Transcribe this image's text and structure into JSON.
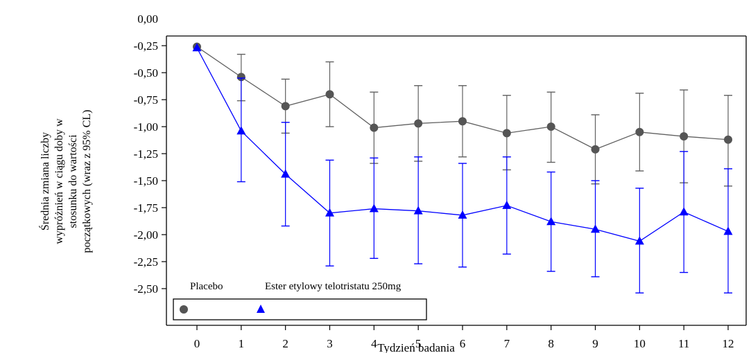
{
  "chart_data": {
    "type": "line",
    "xlabel": "Tydzień badania",
    "ylabel_lines": [
      "Średnia zmiana liczby",
      "wypróżnień w ciągu doby w",
      "stosunku do wartości",
      "początkowych (wraz z 95% CL)"
    ],
    "x": [
      0,
      1,
      2,
      3,
      4,
      5,
      6,
      7,
      8,
      9,
      10,
      11,
      12
    ],
    "x_tick_labels": [
      "0",
      "1",
      "2",
      "3",
      "4",
      "5",
      "6",
      "7",
      "8",
      "9",
      "10",
      "11",
      "12"
    ],
    "y_tick_labels": [
      "0,00",
      "-0,25",
      "-0,50",
      "-0,75",
      "-1,00",
      "-1,25",
      "-1,50",
      "-1,75",
      "-2,00",
      "-2,25",
      "-2,50"
    ],
    "y_ticks": [
      0,
      -0.25,
      -0.5,
      -0.75,
      -1.0,
      -1.25,
      -1.5,
      -1.75,
      -2.0,
      -2.25,
      -2.5
    ],
    "ylim": [
      -2.75,
      0.0
    ],
    "xlim": [
      -0.5,
      12.5
    ],
    "grid": false,
    "legend_placement": "bottom-left",
    "series": [
      {
        "name": "Placebo",
        "marker": "circle",
        "color": "#606060",
        "values": [
          -0.26,
          -0.54,
          -0.81,
          -0.7,
          -1.01,
          -0.97,
          -0.95,
          -1.06,
          -1.0,
          -1.21,
          -1.05,
          -1.09,
          -1.12
        ],
        "lower": [
          -0.26,
          -0.76,
          -1.06,
          -1.0,
          -1.34,
          -1.32,
          -1.28,
          -1.4,
          -1.33,
          -1.53,
          -1.41,
          -1.52,
          -1.55
        ],
        "upper": [
          -0.26,
          -0.33,
          -0.56,
          -0.4,
          -0.68,
          -0.62,
          -0.62,
          -0.71,
          -0.68,
          -0.89,
          -0.69,
          -0.66,
          -0.71
        ]
      },
      {
        "name": "Ester etylowy telotristatu 250mg",
        "marker": "triangle",
        "color": "#0000ff",
        "values": [
          -0.27,
          -1.04,
          -1.44,
          -1.8,
          -1.76,
          -1.78,
          -1.82,
          -1.73,
          -1.88,
          -1.95,
          -2.06,
          -1.79,
          -1.97
        ],
        "lower": [
          -0.27,
          -1.51,
          -1.92,
          -2.29,
          -2.22,
          -2.27,
          -2.3,
          -2.18,
          -2.34,
          -2.39,
          -2.54,
          -2.35,
          -2.54
        ],
        "upper": [
          -0.27,
          -0.55,
          -0.96,
          -1.31,
          -1.29,
          -1.28,
          -1.34,
          -1.28,
          -1.42,
          -1.5,
          -1.57,
          -1.23,
          -1.39
        ]
      }
    ]
  }
}
